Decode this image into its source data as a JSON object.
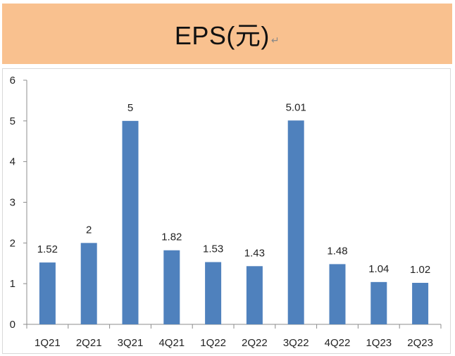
{
  "title": {
    "text": "EPS(元)",
    "mark": "↵"
  },
  "colors": {
    "title_band": "#f9c18f",
    "bar": "#4f81bd",
    "axis": "#8c8c8c"
  },
  "chart_data": {
    "type": "bar",
    "title": "EPS(元)",
    "xlabel": "",
    "ylabel": "",
    "categories": [
      "1Q21",
      "2Q21",
      "3Q21",
      "4Q21",
      "1Q22",
      "2Q22",
      "3Q22",
      "4Q22",
      "1Q23",
      "2Q23"
    ],
    "values": [
      1.52,
      2,
      5,
      1.82,
      1.53,
      1.43,
      5.01,
      1.48,
      1.04,
      1.02
    ],
    "value_labels": [
      "1.52",
      "2",
      "5",
      "1.82",
      "1.53",
      "1.43",
      "5.01",
      "1.48",
      "1.04",
      "1.02"
    ],
    "ylim": [
      0,
      6
    ],
    "yticks": [
      0,
      1,
      2,
      3,
      4,
      5,
      6
    ],
    "grid": false,
    "legend": "none"
  }
}
